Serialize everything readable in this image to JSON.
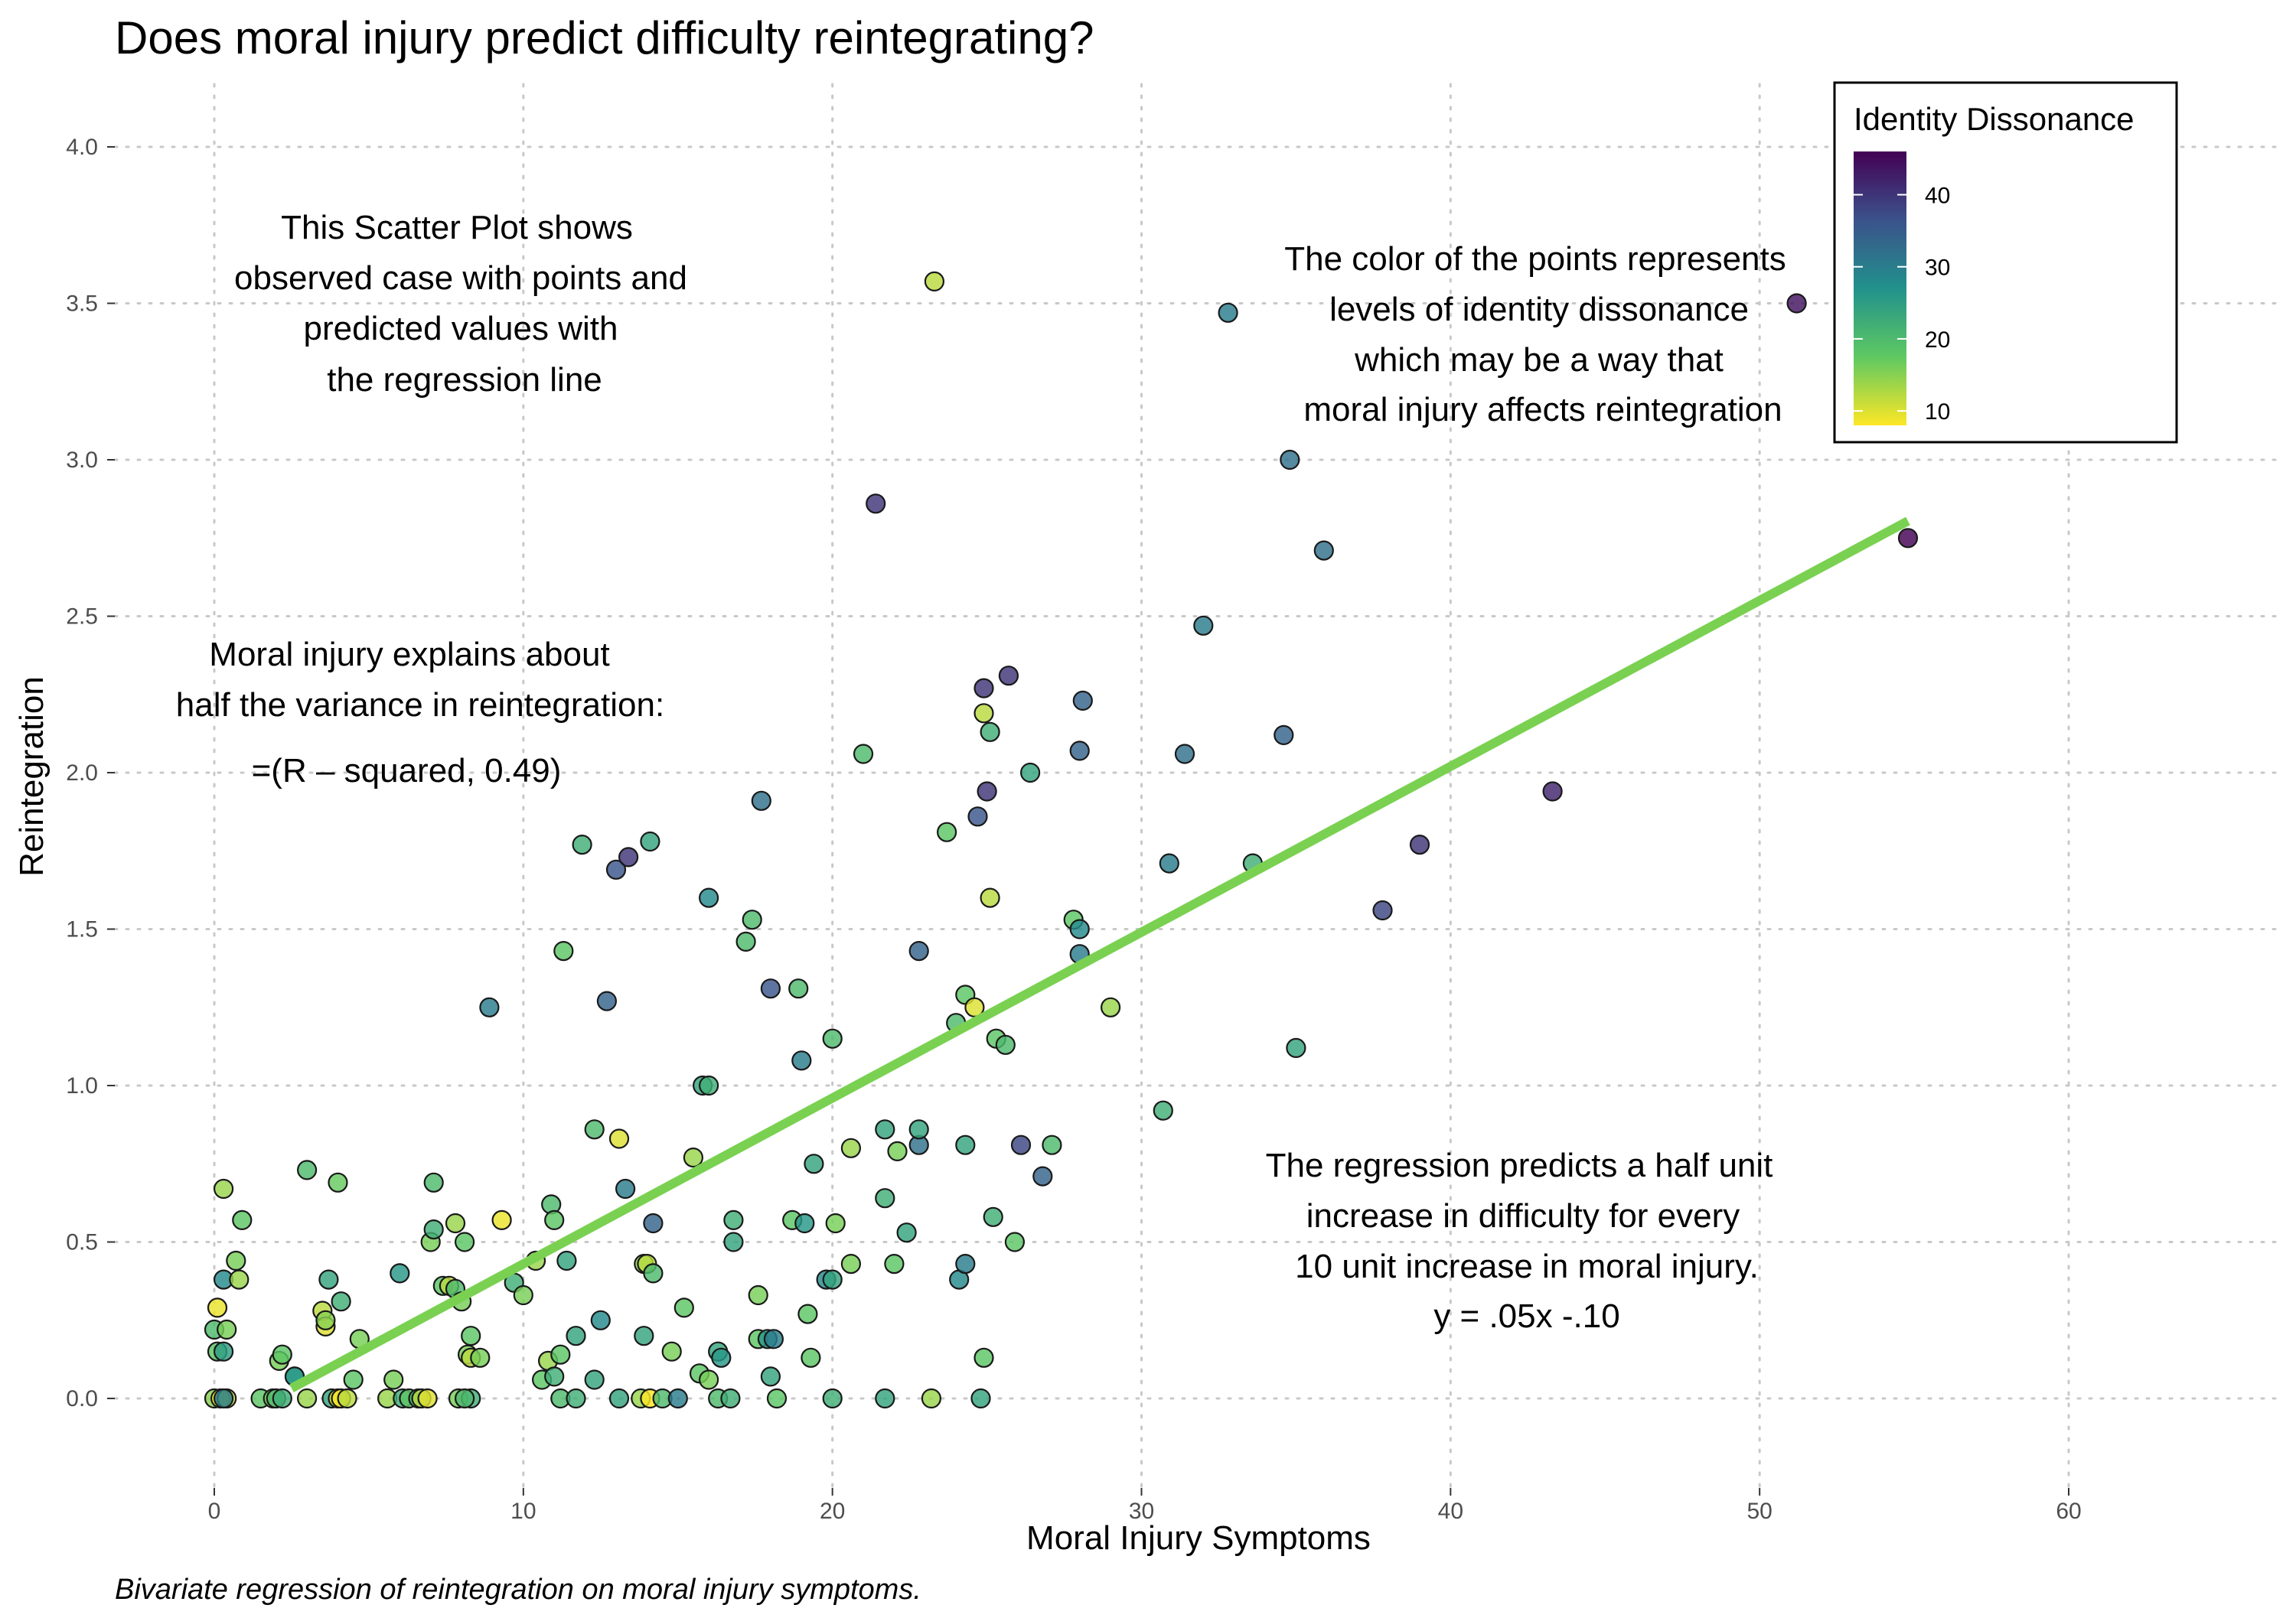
{
  "chart_data": {
    "type": "scatter",
    "title": "Does moral injury predict difficulty reintegrating?",
    "caption": "Bivariate regression of reintegration on moral injury symptoms.",
    "xlabel": "Moral Injury Symptoms",
    "ylabel": "Reintegration",
    "xlim": [
      -1.5,
      67.5
    ],
    "ylim": [
      -0.25,
      4.15
    ],
    "x_ticks": [
      0,
      10,
      20,
      30,
      40,
      50,
      60
    ],
    "y_ticks": [
      0.0,
      0.5,
      1.0,
      1.5,
      2.0,
      2.5,
      3.0,
      3.5,
      4.0
    ],
    "y_tick_labels": [
      "0.0",
      "0.5",
      "1.0",
      "1.5",
      "2.0",
      "2.5",
      "3.0",
      "3.5",
      "4.0"
    ],
    "grid": "dotted",
    "legend": {
      "title": "Identity Dissonance",
      "placement": "top-right",
      "type": "colorbar",
      "range": [
        8,
        46
      ],
      "breaks": [
        10,
        20,
        30,
        40
      ],
      "colors": [
        "#fde725",
        "#5ec962",
        "#21918c",
        "#3b528b",
        "#440154"
      ]
    },
    "regression_line": {
      "x_start": 2.5,
      "x_end": 54.8,
      "intercept": -0.1,
      "slope": 0.053,
      "color": "#7ad151"
    },
    "annotations": {
      "top_left": [
        "This Scatter Plot shows",
        "observed case with points and",
        "predicted values with",
        "the regression line"
      ],
      "top_right": [
        "The color of the points represents",
        "levels of identity dissonance",
        "which may be a way that",
        "moral injury affects reintegration"
      ],
      "mid_left": [
        "Moral injury explains about",
        "half the variance in reintegration:",
        "=(R – squared, 0.49)"
      ],
      "bottom_right": [
        "The regression predicts a half unit",
        "increase in difficulty for every",
        "10 unit increase in moral injury.",
        "y = .05x -.10"
      ]
    },
    "points": [
      [
        0,
        0,
        15
      ],
      [
        0.2,
        0,
        8
      ],
      [
        0.4,
        0,
        12
      ],
      [
        0.3,
        0,
        30
      ],
      [
        0.1,
        0.15,
        18
      ],
      [
        0.3,
        0.15,
        25
      ],
      [
        0.0,
        0.22,
        20
      ],
      [
        0.4,
        0.22,
        16
      ],
      [
        0.1,
        0.29,
        9
      ],
      [
        0.3,
        0.38,
        28
      ],
      [
        0.3,
        0.67,
        14
      ],
      [
        0.8,
        0.38,
        14
      ],
      [
        0.7,
        0.44,
        16
      ],
      [
        0.9,
        0.57,
        18
      ],
      [
        1.5,
        0,
        18
      ],
      [
        1.9,
        0,
        16
      ],
      [
        2.0,
        0,
        20
      ],
      [
        2.2,
        0,
        22
      ],
      [
        2.1,
        0.12,
        16
      ],
      [
        2.2,
        0.14,
        18
      ],
      [
        2.6,
        0.07,
        24
      ],
      [
        2.6,
        0.07,
        26
      ],
      [
        3.0,
        0,
        14
      ],
      [
        3.0,
        0.73,
        20
      ],
      [
        3.5,
        0.28,
        12
      ],
      [
        3.6,
        0.23,
        10
      ],
      [
        3.6,
        0.25,
        15
      ],
      [
        3.7,
        0.38,
        24
      ],
      [
        3.8,
        0,
        24
      ],
      [
        4.0,
        0,
        10
      ],
      [
        4.1,
        0,
        8
      ],
      [
        4.3,
        0,
        12
      ],
      [
        4.0,
        0.69,
        17
      ],
      [
        4.1,
        0.31,
        22
      ],
      [
        4.5,
        0.06,
        18
      ],
      [
        4.7,
        0.19,
        16
      ],
      [
        5.6,
        0,
        14
      ],
      [
        5.8,
        0.06,
        16
      ],
      [
        6.0,
        0.4,
        26
      ],
      [
        6.1,
        0,
        22
      ],
      [
        6.3,
        0,
        18
      ],
      [
        6.6,
        0,
        20
      ],
      [
        6.7,
        0,
        12
      ],
      [
        6.9,
        0,
        10
      ],
      [
        7.0,
        0.5,
        16
      ],
      [
        7.1,
        0.69,
        20
      ],
      [
        7.1,
        0.54,
        22
      ],
      [
        7.4,
        0.36,
        18
      ],
      [
        7.6,
        0.36,
        12
      ],
      [
        7.8,
        0.56,
        14
      ],
      [
        7.8,
        0.35,
        20
      ],
      [
        7.9,
        0,
        16
      ],
      [
        8.0,
        0.31,
        16
      ],
      [
        8.1,
        0.5,
        18
      ],
      [
        8.2,
        0.14,
        16
      ],
      [
        8.3,
        0.2,
        18
      ],
      [
        8.3,
        0.13,
        12
      ],
      [
        8.3,
        0,
        22
      ],
      [
        8.1,
        0,
        20
      ],
      [
        8.6,
        0.13,
        16
      ],
      [
        8.9,
        1.25,
        30
      ],
      [
        9.3,
        0.57,
        9
      ],
      [
        9.7,
        0.37,
        22
      ],
      [
        10.0,
        0.33,
        16
      ],
      [
        10.4,
        0.44,
        14
      ],
      [
        10.6,
        0.06,
        18
      ],
      [
        10.8,
        0.12,
        14
      ],
      [
        10.9,
        0.62,
        20
      ],
      [
        11.0,
        0.57,
        18
      ],
      [
        11.0,
        0.07,
        22
      ],
      [
        11.2,
        0,
        20
      ],
      [
        11.2,
        0.14,
        18
      ],
      [
        11.3,
        1.43,
        18
      ],
      [
        11.4,
        0.44,
        24
      ],
      [
        11.7,
        0,
        22
      ],
      [
        11.7,
        0.2,
        24
      ],
      [
        11.9,
        1.77,
        22
      ],
      [
        12.3,
        0.06,
        24
      ],
      [
        12.3,
        0.86,
        20
      ],
      [
        12.5,
        0.25,
        28
      ],
      [
        12.7,
        1.27,
        34
      ],
      [
        13.0,
        1.69,
        36
      ],
      [
        13.1,
        0.83,
        10
      ],
      [
        13.1,
        0,
        24
      ],
      [
        13.3,
        0.67,
        30
      ],
      [
        13.4,
        1.73,
        40
      ],
      [
        13.8,
        0,
        14
      ],
      [
        13.9,
        0.2,
        24
      ],
      [
        13.9,
        0.43,
        15
      ],
      [
        14.0,
        0.43,
        12
      ],
      [
        14.1,
        0,
        8
      ],
      [
        14.1,
        1.78,
        24
      ],
      [
        14.2,
        0.4,
        20
      ],
      [
        14.2,
        0.56,
        34
      ],
      [
        14.5,
        0,
        20
      ],
      [
        14.8,
        0.15,
        16
      ],
      [
        15.0,
        0,
        30
      ],
      [
        15.2,
        0.29,
        18
      ],
      [
        15.5,
        0.77,
        14
      ],
      [
        15.7,
        0.08,
        18
      ],
      [
        15.8,
        1.0,
        24
      ],
      [
        16.0,
        1.6,
        28
      ],
      [
        16.0,
        1.0,
        22
      ],
      [
        16.0,
        0.06,
        16
      ],
      [
        16.3,
        0,
        20
      ],
      [
        16.3,
        0.15,
        24
      ],
      [
        16.4,
        0.13,
        26
      ],
      [
        16.7,
        0,
        22
      ],
      [
        16.8,
        0.5,
        24
      ],
      [
        16.8,
        0.57,
        22
      ],
      [
        17.2,
        1.46,
        20
      ],
      [
        17.4,
        1.53,
        20
      ],
      [
        17.6,
        0.33,
        16
      ],
      [
        17.6,
        0.19,
        18
      ],
      [
        17.7,
        1.91,
        32
      ],
      [
        17.9,
        0.19,
        26
      ],
      [
        18.0,
        0.07,
        24
      ],
      [
        18.0,
        1.31,
        36
      ],
      [
        18.1,
        0.19,
        30
      ],
      [
        18.2,
        0,
        18
      ],
      [
        18.7,
        0.57,
        18
      ],
      [
        18.9,
        1.31,
        20
      ],
      [
        19.0,
        1.08,
        30
      ],
      [
        19.1,
        0.56,
        26
      ],
      [
        19.2,
        0.27,
        18
      ],
      [
        19.3,
        0.13,
        18
      ],
      [
        19.4,
        0.75,
        24
      ],
      [
        19.8,
        0.38,
        28
      ],
      [
        20.0,
        0.38,
        24
      ],
      [
        20.0,
        1.15,
        20
      ],
      [
        20.0,
        0,
        22
      ],
      [
        20.1,
        0.56,
        16
      ],
      [
        20.6,
        0.8,
        14
      ],
      [
        20.6,
        0.43,
        16
      ],
      [
        21.0,
        2.06,
        20
      ],
      [
        21.4,
        2.86,
        40
      ],
      [
        21.7,
        0.86,
        24
      ],
      [
        21.7,
        0.64,
        22
      ],
      [
        21.7,
        0,
        24
      ],
      [
        22.0,
        0.43,
        18
      ],
      [
        22.1,
        0.79,
        16
      ],
      [
        22.4,
        0.53,
        24
      ],
      [
        22.8,
        0.81,
        32
      ],
      [
        22.8,
        1.43,
        34
      ],
      [
        22.8,
        0.86,
        24
      ],
      [
        23.2,
        0,
        14
      ],
      [
        23.3,
        3.57,
        12
      ],
      [
        23.7,
        1.81,
        18
      ],
      [
        24.0,
        1.2,
        20
      ],
      [
        24.1,
        0.38,
        28
      ],
      [
        24.3,
        1.29,
        18
      ],
      [
        24.3,
        0.81,
        24
      ],
      [
        24.3,
        0.43,
        30
      ],
      [
        24.6,
        1.25,
        10
      ],
      [
        24.7,
        1.86,
        36
      ],
      [
        24.9,
        2.27,
        40
      ],
      [
        24.9,
        2.19,
        12
      ],
      [
        24.9,
        0.13,
        18
      ],
      [
        24.8,
        0,
        24
      ],
      [
        25.0,
        1.94,
        40
      ],
      [
        25.1,
        2.13,
        22
      ],
      [
        25.1,
        1.6,
        12
      ],
      [
        25.2,
        0.58,
        22
      ],
      [
        25.3,
        1.15,
        18
      ],
      [
        25.6,
        1.13,
        20
      ],
      [
        25.7,
        2.31,
        40
      ],
      [
        25.9,
        0.5,
        18
      ],
      [
        26.1,
        0.81,
        38
      ],
      [
        26.4,
        2.0,
        24
      ],
      [
        26.8,
        0.71,
        34
      ],
      [
        27.1,
        0.81,
        20
      ],
      [
        27.8,
        1.53,
        18
      ],
      [
        28.0,
        2.07,
        34
      ],
      [
        28.0,
        1.42,
        30
      ],
      [
        28.0,
        1.5,
        28
      ],
      [
        28.1,
        2.23,
        34
      ],
      [
        29.0,
        1.25,
        14
      ],
      [
        30.7,
        0.92,
        22
      ],
      [
        30.9,
        1.71,
        30
      ],
      [
        31.4,
        2.06,
        32
      ],
      [
        32.8,
        3.47,
        30
      ],
      [
        32.0,
        2.47,
        30
      ],
      [
        33.6,
        1.71,
        22
      ],
      [
        34.6,
        2.12,
        34
      ],
      [
        34.8,
        3.0,
        32
      ],
      [
        35.0,
        1.12,
        24
      ],
      [
        35.9,
        2.71,
        32
      ],
      [
        37.8,
        1.56,
        38
      ],
      [
        39.0,
        1.77,
        40
      ],
      [
        43.3,
        1.94,
        42
      ],
      [
        51.2,
        3.5,
        44
      ],
      [
        54.8,
        2.75,
        46
      ]
    ]
  }
}
